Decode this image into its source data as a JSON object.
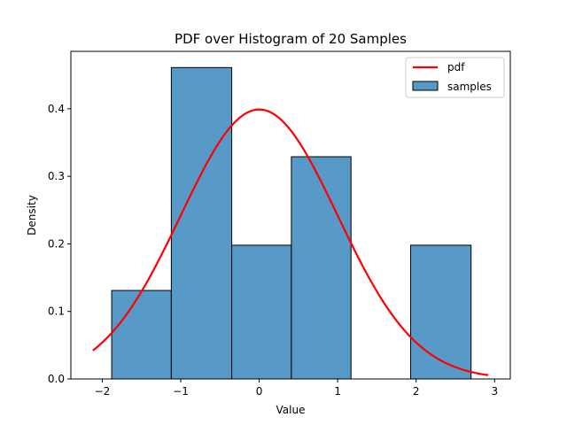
{
  "chart_data": {
    "type": "bar",
    "title": "PDF over Histogram of 20 Samples",
    "xlabel": "Value",
    "ylabel": "Density",
    "xlim": [
      -2.4,
      3.2
    ],
    "ylim": [
      0,
      0.485
    ],
    "xticks": [
      "−2",
      "−1",
      "0",
      "1",
      "2",
      "3"
    ],
    "xtick_values": [
      -2,
      -1,
      0,
      1,
      2,
      3
    ],
    "yticks": [
      "0.0",
      "0.1",
      "0.2",
      "0.3",
      "0.4"
    ],
    "ytick_values": [
      0.0,
      0.1,
      0.2,
      0.3,
      0.4
    ],
    "grid": false,
    "legend_position": "top-right",
    "histogram": {
      "name": "samples",
      "color": "#5799c7",
      "edge_color": "#000000",
      "bins": [
        {
          "start": -1.88,
          "end": -1.12,
          "density": 0.131
        },
        {
          "start": -1.12,
          "end": -0.35,
          "density": 0.461
        },
        {
          "start": -0.35,
          "end": 0.41,
          "density": 0.198
        },
        {
          "start": 0.41,
          "end": 1.17,
          "density": 0.329
        },
        {
          "start": 1.17,
          "end": 1.93,
          "density": 0.0
        },
        {
          "start": 1.93,
          "end": 2.7,
          "density": 0.198
        }
      ]
    },
    "pdf": {
      "name": "pdf",
      "color": "#ff0000",
      "distribution": "normal",
      "mean": 0,
      "std": 1,
      "x_range": [
        -2.12,
        2.92
      ]
    },
    "legend": [
      "pdf",
      "samples"
    ]
  }
}
